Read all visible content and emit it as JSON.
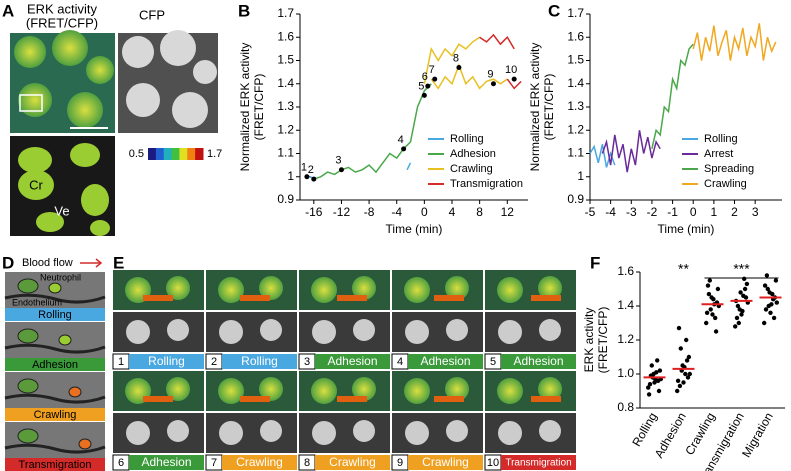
{
  "panel_labels": [
    "A",
    "B",
    "C",
    "D",
    "E",
    "F"
  ],
  "panel_a": {
    "title_line1": "ERK activity",
    "title_line2": "(FRET/CFP)",
    "cfp_label": "CFP",
    "colorbar_min": "0.5",
    "colorbar_max": "1.7",
    "cr_label": "Cr",
    "ve_label": "Ve"
  },
  "panel_d": {
    "flow_label": "Blood flow",
    "neutrophil": "Neutrophil",
    "endothelium": "Endothelium",
    "stages": [
      "Rolling",
      "Adhesion",
      "Crawling",
      "Transmigration"
    ]
  },
  "panel_e": {
    "frames": [
      {
        "number": "1",
        "stage": "Rolling"
      },
      {
        "number": "2",
        "stage": "Rolling"
      },
      {
        "number": "3",
        "stage": "Adhesion"
      },
      {
        "number": "4",
        "stage": "Adhesion"
      },
      {
        "number": "5",
        "stage": "Adhesion"
      },
      {
        "number": "6",
        "stage": "Adhesion"
      },
      {
        "number": "7",
        "stage": "Crawling"
      },
      {
        "number": "8",
        "stage": "Crawling"
      },
      {
        "number": "9",
        "stage": "Crawling"
      },
      {
        "number": "10",
        "stage": "Transmigration"
      }
    ]
  },
  "chart_data": [
    {
      "type": "line",
      "ylabel": [
        "Normalized ERK activity",
        "(FRET/CFP)"
      ],
      "xlabel": "Time (min)",
      "xlim": [
        -18,
        15
      ],
      "xticks": [
        -16,
        -12,
        -8,
        -4,
        0,
        4,
        8,
        12
      ],
      "ylim": [
        0.9,
        1.7
      ],
      "yticks": [
        0.9,
        1,
        1.1,
        1.2,
        1.3,
        1.4,
        1.5,
        1.6,
        1.7
      ],
      "legend": "lower right",
      "series": [
        {
          "name": "Rolling",
          "color": "#4aa8e0",
          "x": [
            -17,
            -16.5,
            -16,
            -3,
            -2.5,
            -2
          ],
          "values": [
            1.0,
            1.0,
            0.99,
            null,
            1.03,
            1.06
          ]
        },
        {
          "name": "Adhesion",
          "color": "#4aa84a",
          "x": [
            -16,
            -15,
            -14,
            -13,
            -12,
            -11,
            -10,
            -9,
            -8,
            -7,
            -6,
            -5,
            -4,
            -3,
            -2,
            -1,
            0,
            1
          ],
          "values": [
            0.99,
            1.0,
            1.02,
            1.01,
            1.03,
            1.04,
            1.02,
            1.03,
            1.05,
            1.02,
            1.06,
            1.1,
            1.08,
            1.12,
            1.15,
            1.3,
            1.37,
            1.4
          ]
        },
        {
          "name": "Crawling",
          "color": "#e8c020",
          "x": [
            0,
            1,
            2,
            3,
            4,
            5,
            6,
            7,
            8,
            8,
            1,
            2,
            3,
            4,
            5,
            6,
            7,
            8,
            9,
            10,
            11,
            12
          ],
          "values": [
            1.4,
            1.55,
            1.5,
            1.55,
            1.52,
            1.57,
            1.55,
            1.58,
            1.6,
            null,
            1.42,
            1.38,
            1.43,
            1.4,
            1.48,
            1.4,
            1.43,
            1.38,
            1.41,
            1.42,
            1.4,
            1.42
          ]
        },
        {
          "name": "Transmigration",
          "color": "#d42a2a",
          "x": [
            8,
            9,
            10,
            11,
            12,
            13,
            13,
            12,
            13,
            14
          ],
          "values": [
            1.6,
            1.58,
            1.61,
            1.57,
            1.6,
            1.55,
            null,
            1.42,
            1.38,
            1.41
          ]
        }
      ],
      "annotations": [
        {
          "x": -17,
          "y": 1.0,
          "label": "1"
        },
        {
          "x": -16,
          "y": 0.99,
          "label": "2"
        },
        {
          "x": -12,
          "y": 1.03,
          "label": "3"
        },
        {
          "x": -3,
          "y": 1.12,
          "label": "4"
        },
        {
          "x": 0,
          "y": 1.35,
          "label": "5"
        },
        {
          "x": 0.5,
          "y": 1.39,
          "label": "6"
        },
        {
          "x": 1.5,
          "y": 1.42,
          "label": "7"
        },
        {
          "x": 5,
          "y": 1.47,
          "label": "8"
        },
        {
          "x": 10,
          "y": 1.4,
          "label": "9"
        },
        {
          "x": 13,
          "y": 1.42,
          "label": "10"
        }
      ]
    },
    {
      "type": "line",
      "ylabel": [
        "Normalized ERK activity",
        "(FRET/CFP)"
      ],
      "xlabel": "Time (min)",
      "xlim": [
        -5,
        4.3
      ],
      "xticks": [
        -5,
        -4,
        -3,
        -2,
        -1,
        0,
        1,
        2,
        3
      ],
      "ylim": [
        0.9,
        1.7
      ],
      "yticks": [
        0.9,
        1,
        1.1,
        1.2,
        1.3,
        1.4,
        1.5,
        1.6,
        1.7
      ],
      "legend": "lower right",
      "series": [
        {
          "name": "Rolling",
          "color": "#4aa8e0",
          "x": [
            -5,
            -4.8,
            -4.6,
            -4.4,
            -4.2,
            -4,
            -3.8
          ],
          "values": [
            1.1,
            1.13,
            1.06,
            1.14,
            1.04,
            1.1,
            1.05
          ]
        },
        {
          "name": "Arrest",
          "color": "#6a2a9a",
          "x": [
            -4.4,
            -4.2,
            -4,
            -3.8,
            -3.6,
            -3.4,
            -3.2,
            -3,
            -2.8,
            -2.6,
            -2.4,
            -2.2,
            -2,
            -1.8,
            -1.6
          ],
          "values": [
            1.1,
            1.15,
            1.05,
            1.18,
            1.08,
            1.14,
            1.02,
            1.12,
            1.05,
            1.2,
            1.1,
            1.17,
            1.08,
            1.15,
            1.12
          ]
        },
        {
          "name": "Spreading",
          "color": "#4aa84a",
          "x": [
            -2,
            -1.8,
            -1.6,
            -1.4,
            -1.2,
            -1,
            -0.8,
            -0.6,
            -0.4,
            -0.2,
            0
          ],
          "values": [
            1.12,
            1.2,
            1.18,
            1.3,
            1.28,
            1.42,
            1.38,
            1.5,
            1.48,
            1.55,
            1.57
          ]
        },
        {
          "name": "Crawling",
          "color": "#f0a820",
          "x": [
            0,
            0.2,
            0.4,
            0.6,
            0.8,
            1,
            1.2,
            1.4,
            1.6,
            1.8,
            2,
            2.2,
            2.4,
            2.6,
            2.8,
            3,
            3.2,
            3.4,
            3.6,
            3.8,
            4
          ],
          "values": [
            1.55,
            1.62,
            1.5,
            1.6,
            1.54,
            1.65,
            1.52,
            1.58,
            1.63,
            1.5,
            1.6,
            1.55,
            1.64,
            1.52,
            1.6,
            1.56,
            1.66,
            1.5,
            1.6,
            1.54,
            1.58
          ]
        }
      ]
    },
    {
      "type": "dot",
      "ylabel": [
        "ERK activity",
        "(FRET/CFP)"
      ],
      "categories": [
        "Rolling",
        "Adhesion",
        "Crawling",
        "Transmigration",
        "Migration"
      ],
      "ylim": [
        0.8,
        1.6
      ],
      "yticks": [
        0.8,
        {
          "value": 1,
          "label": "1.0"
        },
        1.2,
        1.4,
        1.6
      ],
      "color": "#000000",
      "mean_color": "#e02020",
      "points": [
        [
          0.92,
          0.95,
          0.97,
          1.0,
          1.02,
          0.98,
          0.9,
          1.05,
          0.96,
          0.99,
          1.08,
          0.94,
          1.01,
          0.88,
          0.97
        ],
        [
          0.9,
          0.95,
          1.0,
          1.05,
          1.1,
          1.02,
          0.98,
          1.15,
          1.08,
          0.93,
          1.2,
          1.27,
          1.0,
          0.96,
          1.04
        ],
        [
          1.3,
          1.35,
          1.4,
          1.45,
          1.5,
          1.38,
          1.42,
          1.55,
          1.25,
          1.47,
          1.33,
          1.52,
          1.41,
          1.36,
          1.44
        ],
        [
          1.28,
          1.35,
          1.42,
          1.48,
          1.53,
          1.38,
          1.45,
          1.3,
          1.5,
          1.4,
          1.56,
          1.33,
          1.46,
          1.43,
          1.37
        ],
        [
          1.3,
          1.36,
          1.42,
          1.48,
          1.55,
          1.4,
          1.45,
          1.5,
          1.33,
          1.58,
          1.44,
          1.38,
          1.47,
          1.52,
          1.41
        ]
      ],
      "means": [
        0.98,
        1.03,
        1.41,
        1.43,
        1.45
      ],
      "annotations": [
        "**",
        "***"
      ]
    }
  ]
}
